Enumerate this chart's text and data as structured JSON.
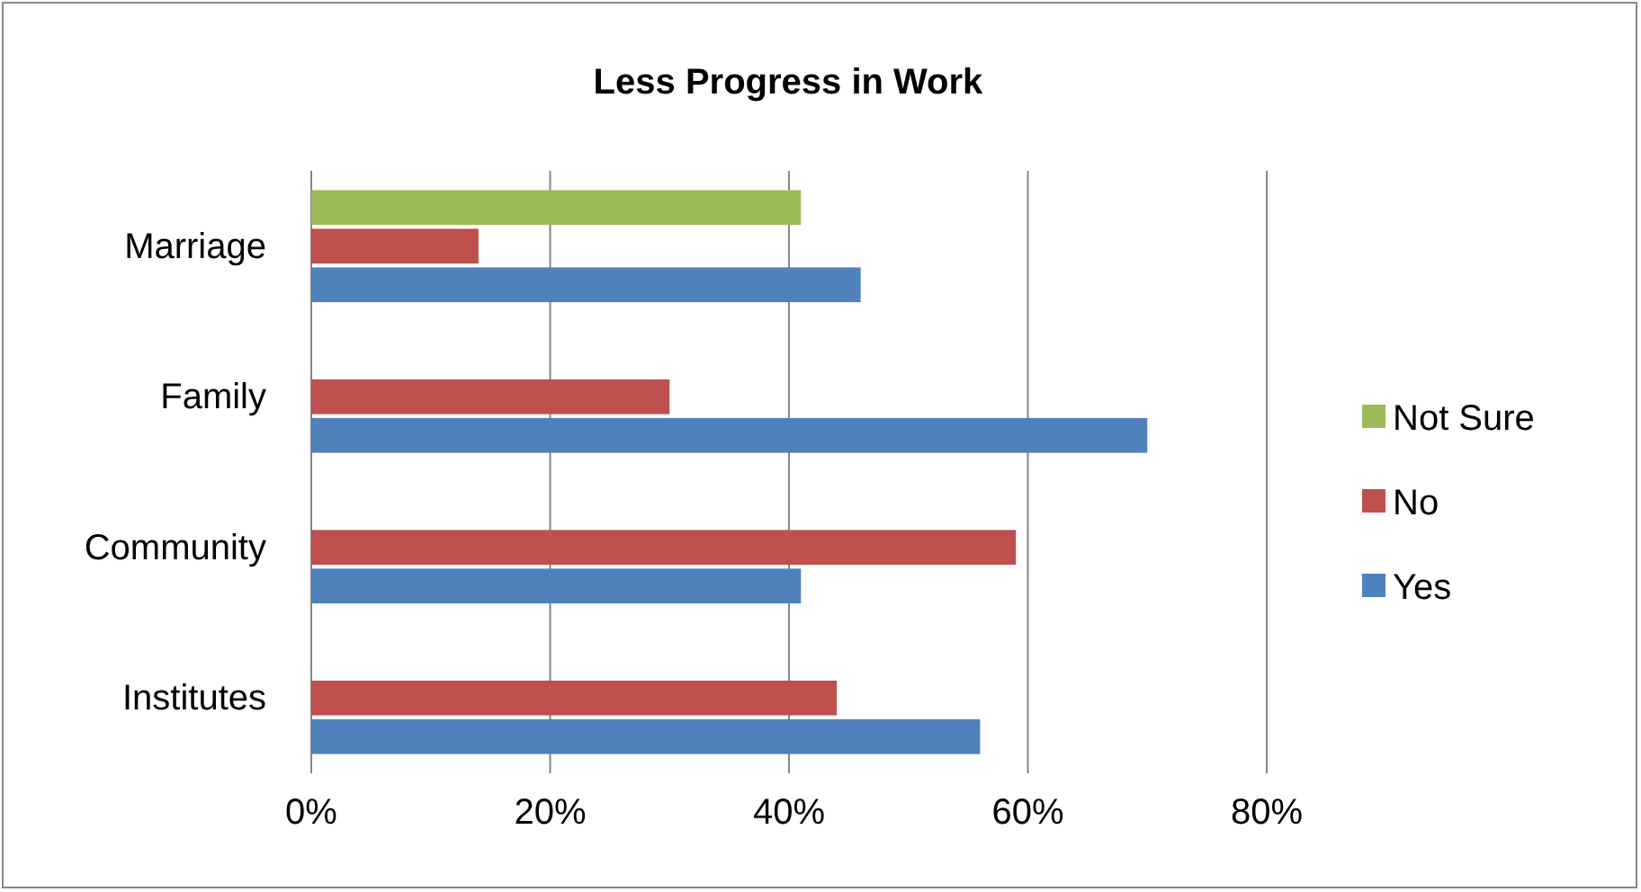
{
  "chart_data": {
    "type": "bar",
    "title": "Less Progress in Work",
    "orientation": "horizontal",
    "categories": [
      "Marriage",
      "Family",
      "Community",
      "Institutes"
    ],
    "series": [
      {
        "name": "Not Sure",
        "color": "#9bbb59",
        "values": [
          41,
          null,
          null,
          null
        ]
      },
      {
        "name": "No",
        "color": "#c0504d",
        "values": [
          14,
          30,
          59,
          44
        ]
      },
      {
        "name": "Yes",
        "color": "#4f81bd",
        "values": [
          46,
          70,
          41,
          56
        ]
      }
    ],
    "xlim": [
      0,
      80
    ],
    "xticks": [
      {
        "value": 0,
        "label": "0%"
      },
      {
        "value": 20,
        "label": "20%"
      },
      {
        "value": 40,
        "label": "40%"
      },
      {
        "value": 60,
        "label": "60%"
      },
      {
        "value": 80,
        "label": "80%"
      }
    ],
    "grid": "x",
    "legend": "right"
  }
}
